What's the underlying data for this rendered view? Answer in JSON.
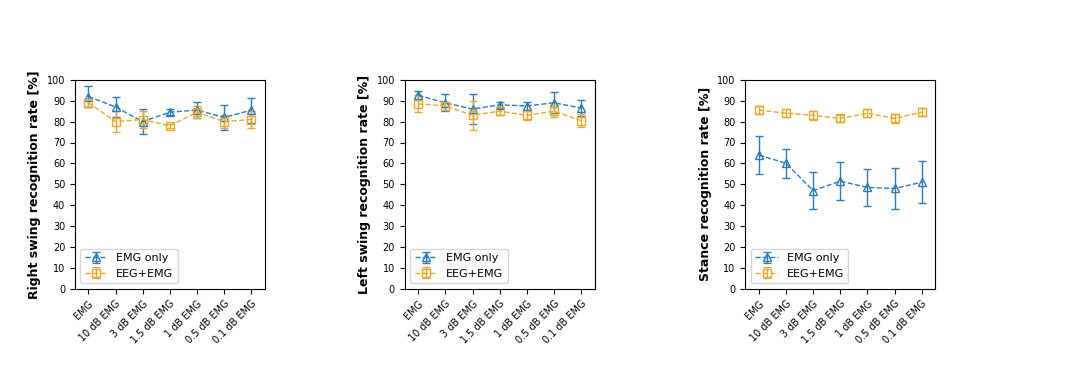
{
  "chart_data": [
    {
      "type": "line",
      "y_label": "Right swing recognition rate [%]",
      "categories": [
        "EMG",
        "10 dB EMG",
        "3 dB EMG",
        "1.5 dB EMG",
        "1 dB EMG",
        "0.5 dB EMG",
        "0.1 dB EMG"
      ],
      "ylim": [
        0,
        100
      ],
      "yticks": [
        0,
        10,
        20,
        30,
        40,
        50,
        60,
        70,
        80,
        90,
        100
      ],
      "legend": "lower left",
      "grid": false,
      "series": [
        {
          "name": "EMG only",
          "color": "#2b7bba",
          "marker": "triangle",
          "line_style": "dashed",
          "values": [
            92,
            87,
            80,
            84.5,
            85.5,
            82,
            85.5
          ],
          "errors": [
            5,
            5,
            6,
            1.5,
            4,
            6,
            6
          ]
        },
        {
          "name": "EEG+EMG",
          "color": "#e8a92a",
          "marker": "square",
          "line_style": "dashed",
          "values": [
            89,
            80,
            81,
            78,
            84.5,
            80,
            81
          ],
          "errors": [
            2,
            5,
            4,
            1,
            3,
            3,
            4
          ]
        }
      ]
    },
    {
      "type": "line",
      "y_label": "Left swing recognition rate [%]",
      "categories": [
        "EMG",
        "10 dB EMG",
        "3 dB EMG",
        "1.5 dB EMG",
        "1 dB EMG",
        "0.5 dB EMG",
        "0.1 dB EMG"
      ],
      "ylim": [
        0,
        100
      ],
      "yticks": [
        0,
        10,
        20,
        30,
        40,
        50,
        60,
        70,
        80,
        90,
        100
      ],
      "legend": "lower left",
      "grid": false,
      "series": [
        {
          "name": "EMG only",
          "color": "#2b7bba",
          "marker": "triangle",
          "line_style": "dashed",
          "values": [
            92.5,
            89,
            86,
            88,
            87.5,
            89,
            86.5
          ],
          "errors": [
            2,
            4,
            7,
            1.5,
            2,
            5,
            4
          ]
        },
        {
          "name": "EEG+EMG",
          "color": "#e8a92a",
          "marker": "square",
          "line_style": "dashed",
          "values": [
            88.5,
            87.5,
            83,
            85,
            83,
            85,
            80.5
          ],
          "errors": [
            4,
            2,
            7,
            2,
            2,
            3,
            3
          ]
        }
      ]
    },
    {
      "type": "line",
      "y_label": "Stance recognition rate [%]",
      "categories": [
        "EMG",
        "10 dB EMG",
        "3 dB EMG",
        "1.5 dB EMG",
        "1 dB EMG",
        "0.5 dB EMG",
        "0.1 dB EMG"
      ],
      "ylim": [
        0,
        100
      ],
      "yticks": [
        0,
        10,
        20,
        30,
        40,
        50,
        60,
        70,
        80,
        90,
        100
      ],
      "legend": "lower left",
      "grid": false,
      "series": [
        {
          "name": "EMG only",
          "color": "#2b7bba",
          "marker": "triangle",
          "line_style": "dashed",
          "values": [
            64,
            60,
            47,
            51.5,
            48.5,
            48,
            51
          ],
          "errors": [
            9,
            7,
            9,
            9,
            9,
            10,
            10
          ]
        },
        {
          "name": "EEG+EMG",
          "color": "#e8a92a",
          "marker": "square",
          "line_style": "dashed",
          "values": [
            85.5,
            84,
            83,
            81.5,
            84,
            81.5,
            84.5
          ],
          "errors": [
            2,
            2,
            2,
            1.5,
            2,
            2,
            2
          ]
        }
      ]
    }
  ]
}
